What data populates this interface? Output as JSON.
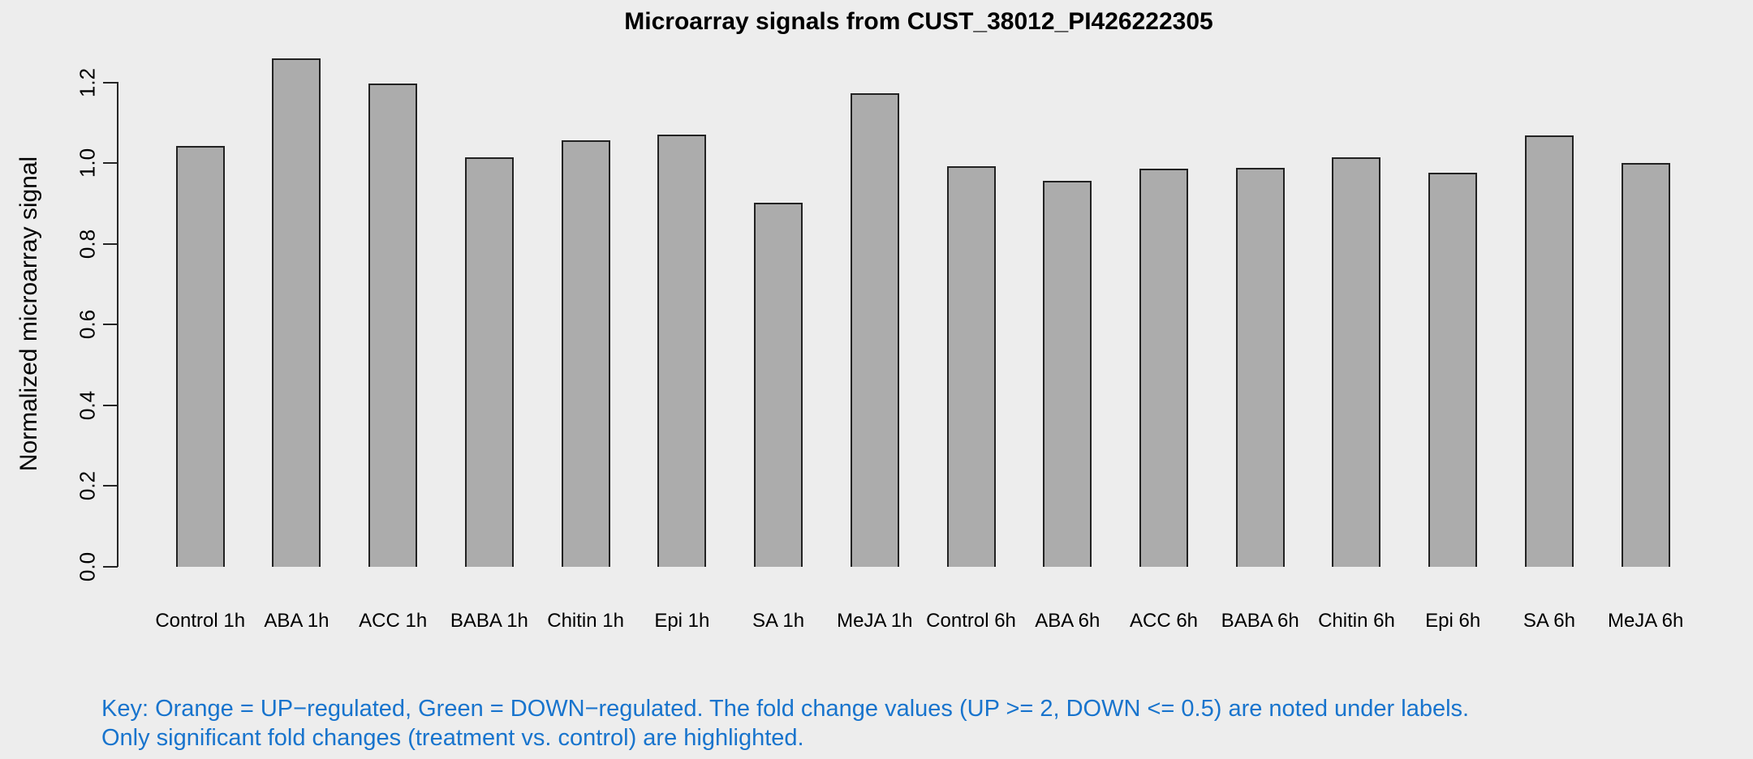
{
  "title": "Microarray signals from CUST_38012_PI426222305",
  "chart_data": {
    "type": "bar",
    "categories": [
      "Control 1h",
      "ABA 1h",
      "ACC 1h",
      "BABA 1h",
      "Chitin 1h",
      "Epi 1h",
      "SA 1h",
      "MeJA 1h",
      "Control 6h",
      "ABA 6h",
      "ACC 6h",
      "BABA 6h",
      "Chitin 6h",
      "Epi 6h",
      "SA 6h",
      "MeJA 6h"
    ],
    "values": [
      1.043,
      1.26,
      1.198,
      1.014,
      1.056,
      1.07,
      0.901,
      1.173,
      0.993,
      0.956,
      0.986,
      0.989,
      1.015,
      0.976,
      1.069,
      1.0
    ],
    "title": "Microarray signals from CUST_38012_PI426222305",
    "xlabel": "",
    "ylabel": "Normalized microarray signal",
    "ylim": [
      0,
      1.26
    ],
    "yticks": [
      0.0,
      0.2,
      0.4,
      0.6,
      0.8,
      1.0,
      1.2
    ],
    "grid": false,
    "legend_position": "none",
    "bar_fill_color": "#ACACAC",
    "bar_border_color": "#222222",
    "background_color": "#EDEDED"
  },
  "footnote": {
    "line1": "Key: Orange = UP−regulated, Green = DOWN−regulated. The fold change values (UP >= 2, DOWN <= 0.5) are noted under labels.",
    "line2": "Only significant fold changes (treatment vs. control) are highlighted.",
    "color": "#1874CD"
  }
}
